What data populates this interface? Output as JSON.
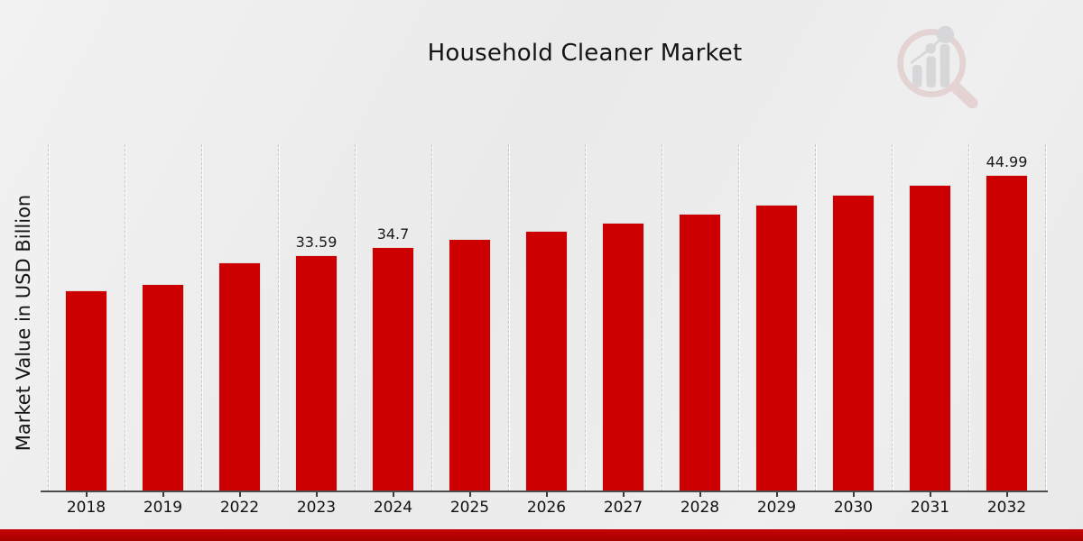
{
  "header": {
    "title": "Household Cleaner Market"
  },
  "chart_data": {
    "type": "bar",
    "title": "Household Cleaner Market",
    "xlabel": "",
    "ylabel": "Market Value in USD Billion",
    "categories": [
      "2018",
      "2019",
      "2022",
      "2023",
      "2024",
      "2025",
      "2026",
      "2027",
      "2028",
      "2029",
      "2030",
      "2031",
      "2032"
    ],
    "values": [
      28.56,
      29.5,
      32.52,
      33.59,
      34.7,
      35.85,
      37.03,
      38.25,
      39.51,
      40.82,
      42.16,
      43.55,
      44.99
    ],
    "value_labels": {
      "2023": "33.59",
      "2024": "34.7",
      "2032": "44.99"
    },
    "ylim": [
      0,
      49.36
    ],
    "grid": "vertical-dashed",
    "legend": "none",
    "bar_color": "#CC0000",
    "bar_edge_color": "#E2DEDE"
  },
  "footer": {
    "accent_color_top": "#C40404",
    "accent_color_bottom": "#A80000"
  },
  "logo": {
    "name": "market-research-future-logo",
    "ring_color": "#DDBDBD",
    "bars_color": "#C5C5C8"
  }
}
